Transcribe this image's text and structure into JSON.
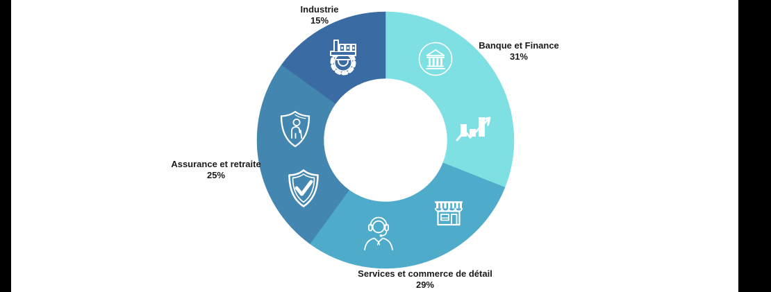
{
  "page": {
    "background": "#ffffff"
  },
  "letterbox": {
    "color": "#000000"
  },
  "chart_data": {
    "type": "pie",
    "subtype": "donut",
    "title": "",
    "categories": [
      "Banque et Finance",
      "Services et commerce de détail",
      "Assurance et retraite",
      "Industrie"
    ],
    "values": [
      31,
      29,
      25,
      15
    ],
    "unit": "%",
    "colors": [
      "#7FE0E4",
      "#4EACCA",
      "#4387B0",
      "#3A6BA3"
    ],
    "start_angle_deg": 0,
    "direction": "clockwise",
    "inner_radius_ratio": 0.48,
    "legend_position": "none",
    "labels": [
      {
        "name": "Banque et Finance",
        "pct": "31%"
      },
      {
        "name": "Services et commerce de détail",
        "pct": "29%"
      },
      {
        "name": "Assurance et retraite",
        "pct": "25%"
      },
      {
        "name": "Industrie",
        "pct": "15%"
      }
    ],
    "slice_icons": [
      [
        "bank-icon",
        "growth-chart-icon"
      ],
      [
        "storefront-icon",
        "customer-support-icon"
      ],
      [
        "shield-person-icon",
        "shield-check-icon"
      ],
      [
        "factory-gear-icon"
      ]
    ]
  }
}
